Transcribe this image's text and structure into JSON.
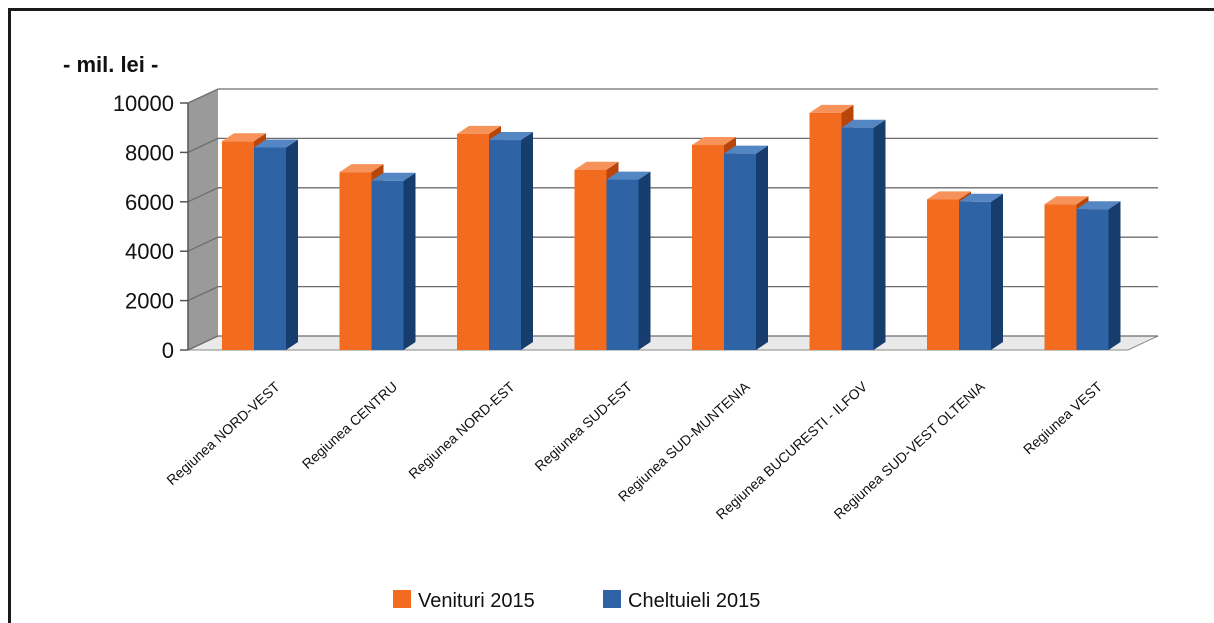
{
  "chart_data": {
    "type": "bar",
    "unit_label": "- mil. lei -",
    "categories": [
      "Regiunea NORD-VEST",
      "Regiunea CENTRU",
      "Regiunea NORD-EST",
      "Regiunea SUD-EST",
      "Regiunea SUD-MUNTENIA",
      "Regiunea BUCURESTI - ILFOV",
      "Regiunea SUD-VEST OLTENIA",
      "Regiunea VEST"
    ],
    "series": [
      {
        "name": "Venituri 2015",
        "color": "#f26b1f",
        "side_color": "#b8460a",
        "top_color": "#f7935a",
        "values": [
          8450,
          7200,
          8750,
          7300,
          8300,
          9600,
          6100,
          5900
        ]
      },
      {
        "name": "Cheltuieli 2015",
        "color": "#2e63a6",
        "side_color": "#173c6e",
        "top_color": "#5586c4",
        "values": [
          8200,
          6850,
          8500,
          6900,
          7950,
          9000,
          6000,
          5700
        ]
      }
    ],
    "y_ticks": [
      "0",
      "2000",
      "4000",
      "6000",
      "8000",
      "10000"
    ],
    "ylim": [
      0,
      10000
    ],
    "grid": true,
    "legend_position": "bottom",
    "style": "3d-column"
  }
}
